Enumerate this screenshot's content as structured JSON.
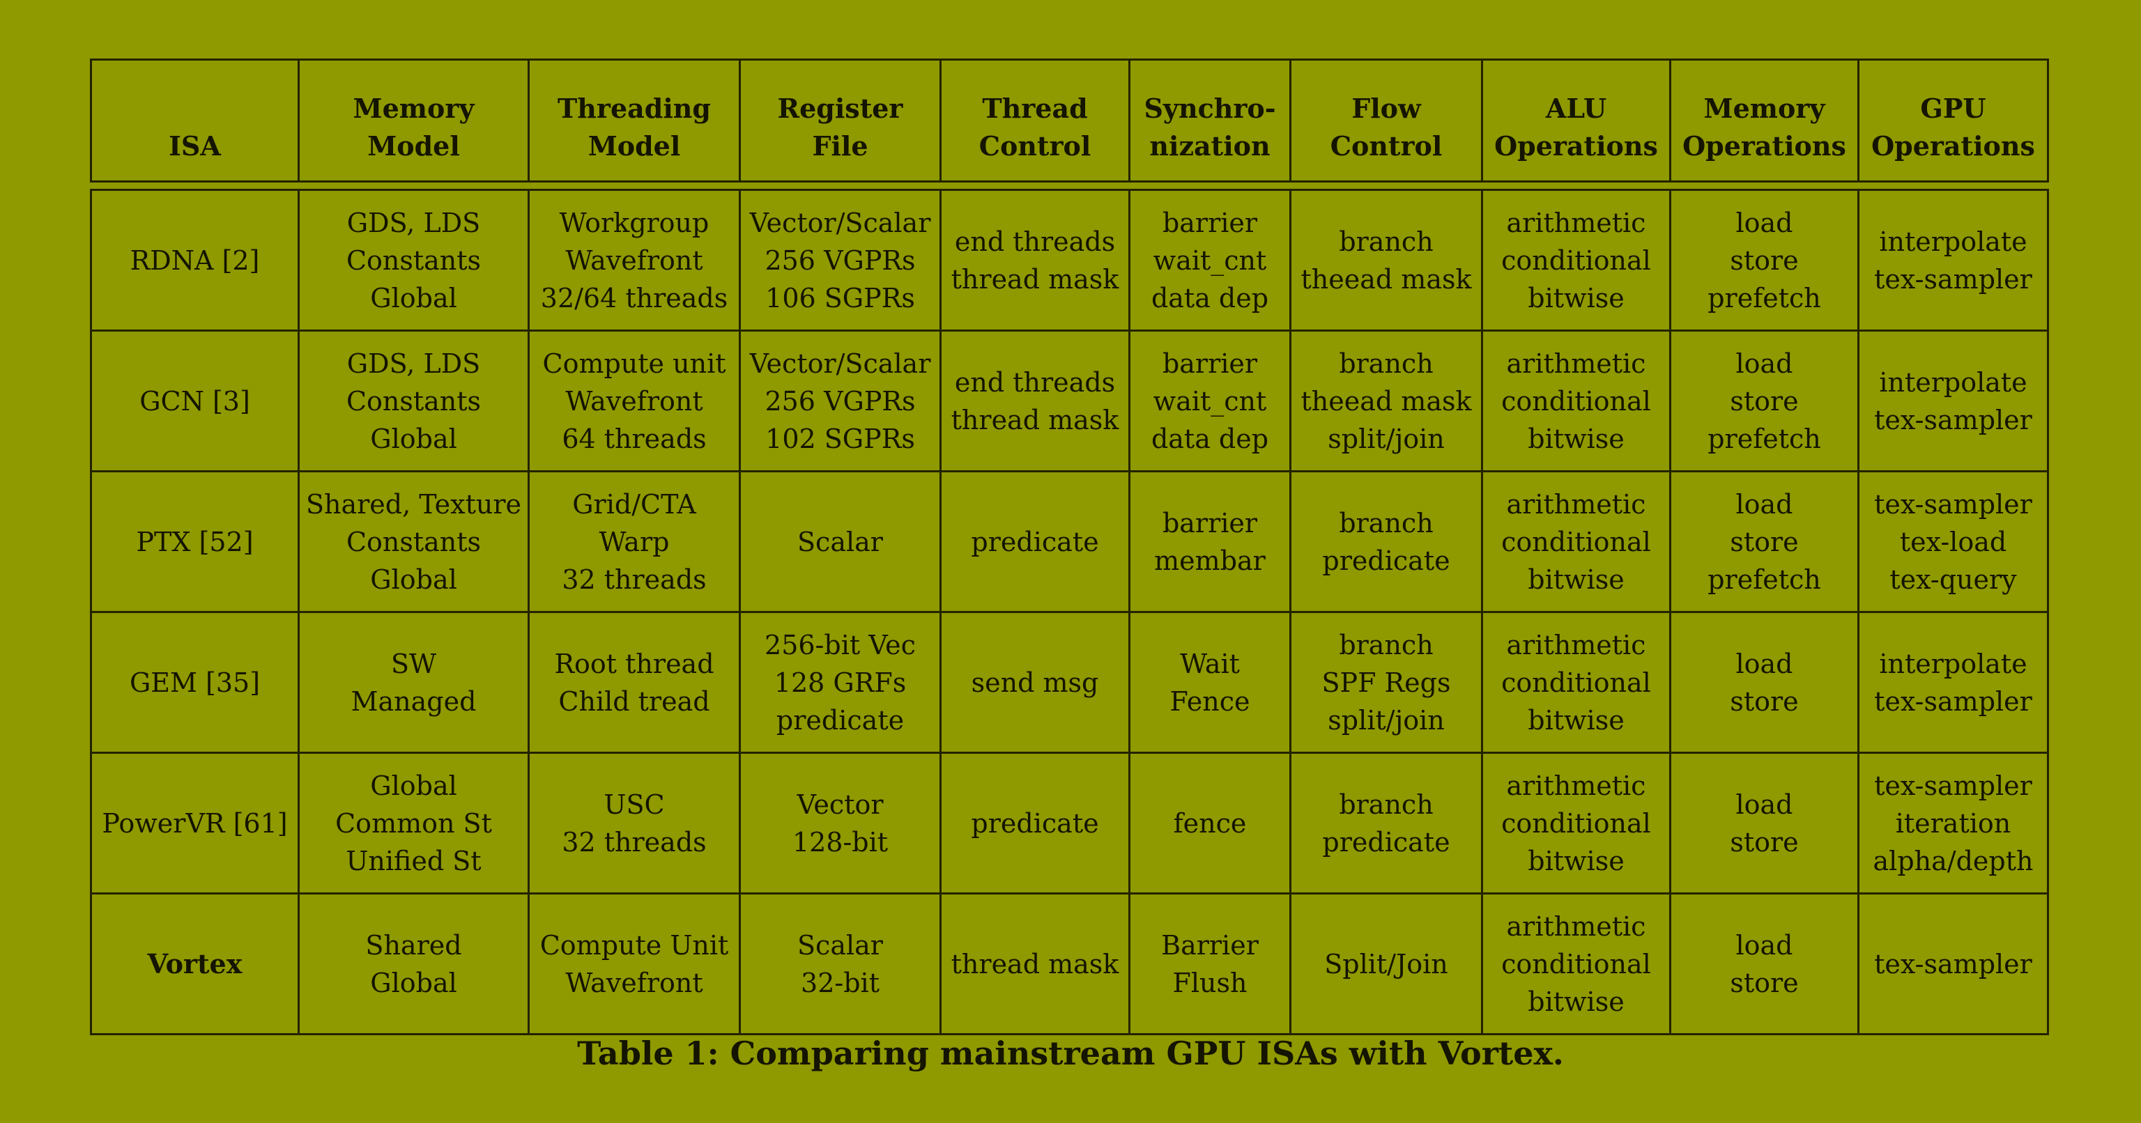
{
  "columns": [
    {
      "lines": [
        "ISA"
      ]
    },
    {
      "lines": [
        "Memory",
        "Model"
      ]
    },
    {
      "lines": [
        "Threading",
        "Model"
      ]
    },
    {
      "lines": [
        "Register",
        "File"
      ]
    },
    {
      "lines": [
        "Thread",
        "Control"
      ]
    },
    {
      "lines": [
        "Synchro-",
        "nization"
      ]
    },
    {
      "lines": [
        "Flow",
        "Control"
      ]
    },
    {
      "lines": [
        "ALU",
        "Operations"
      ]
    },
    {
      "lines": [
        "Memory",
        "Operations"
      ]
    },
    {
      "lines": [
        "GPU",
        "Operations"
      ]
    }
  ],
  "rows": [
    {
      "bold": false,
      "cells": [
        [
          "RDNA [2]"
        ],
        [
          "GDS, LDS",
          "Constants",
          "Global"
        ],
        [
          "Workgroup",
          "Wavefront",
          "32/64 threads"
        ],
        [
          "Vector/Scalar",
          "256 VGPRs",
          "106 SGPRs"
        ],
        [
          "end threads",
          "thread mask"
        ],
        [
          "barrier",
          "wait_cnt",
          "data dep"
        ],
        [
          "branch",
          "theead mask"
        ],
        [
          "arithmetic",
          "conditional",
          "bitwise"
        ],
        [
          "load",
          "store",
          "prefetch"
        ],
        [
          "interpolate",
          "tex-sampler"
        ]
      ]
    },
    {
      "bold": false,
      "cells": [
        [
          "GCN [3]"
        ],
        [
          "GDS, LDS",
          "Constants",
          "Global"
        ],
        [
          "Compute unit",
          "Wavefront",
          "64 threads"
        ],
        [
          "Vector/Scalar",
          "256 VGPRs",
          "102 SGPRs"
        ],
        [
          "end threads",
          "thread mask"
        ],
        [
          "barrier",
          "wait_cnt",
          "data dep"
        ],
        [
          "branch",
          "theead mask",
          "split/join"
        ],
        [
          "arithmetic",
          "conditional",
          "bitwise"
        ],
        [
          "load",
          "store",
          "prefetch"
        ],
        [
          "interpolate",
          "tex-sampler"
        ]
      ]
    },
    {
      "bold": false,
      "cells": [
        [
          "PTX [52]"
        ],
        [
          "Shared, Texture",
          "Constants",
          "Global"
        ],
        [
          "Grid/CTA",
          "Warp",
          "32 threads"
        ],
        [
          "Scalar"
        ],
        [
          "predicate"
        ],
        [
          "barrier",
          "membar"
        ],
        [
          "branch",
          "predicate"
        ],
        [
          "arithmetic",
          "conditional",
          "bitwise"
        ],
        [
          "load",
          "store",
          "prefetch"
        ],
        [
          "tex-sampler",
          "tex-load",
          "tex-query"
        ]
      ]
    },
    {
      "bold": false,
      "cells": [
        [
          "GEM [35]"
        ],
        [
          "SW",
          "Managed"
        ],
        [
          "Root thread",
          "Child tread"
        ],
        [
          "256-bit Vec",
          "128 GRFs",
          "predicate"
        ],
        [
          "send msg"
        ],
        [
          "Wait",
          "Fence"
        ],
        [
          "branch",
          "SPF Regs",
          "split/join"
        ],
        [
          "arithmetic",
          "conditional",
          "bitwise"
        ],
        [
          "load",
          "store"
        ],
        [
          "interpolate",
          "tex-sampler"
        ]
      ]
    },
    {
      "bold": false,
      "cells": [
        [
          "PowerVR [61]"
        ],
        [
          "Global",
          "Common St",
          "Unified St"
        ],
        [
          "USC",
          "32 threads"
        ],
        [
          "Vector",
          "128-bit"
        ],
        [
          "predicate"
        ],
        [
          "fence"
        ],
        [
          "branch",
          "predicate"
        ],
        [
          "arithmetic",
          "conditional",
          "bitwise"
        ],
        [
          "load",
          "store"
        ],
        [
          "tex-sampler",
          "iteration",
          "alpha/depth"
        ]
      ]
    },
    {
      "bold": true,
      "cells": [
        [
          "Vortex"
        ],
        [
          "Shared",
          "Global"
        ],
        [
          "Compute Unit",
          "Wavefront"
        ],
        [
          "Scalar",
          "32-bit"
        ],
        [
          "thread mask"
        ],
        [
          "Barrier",
          "Flush"
        ],
        [
          "Split/Join"
        ],
        [
          "arithmetic",
          "conditional",
          "bitwise"
        ],
        [
          "load",
          "store"
        ],
        [
          "tex-sampler"
        ]
      ]
    }
  ],
  "caption": "Table 1: Comparing mainstream GPU ISAs with Vortex."
}
